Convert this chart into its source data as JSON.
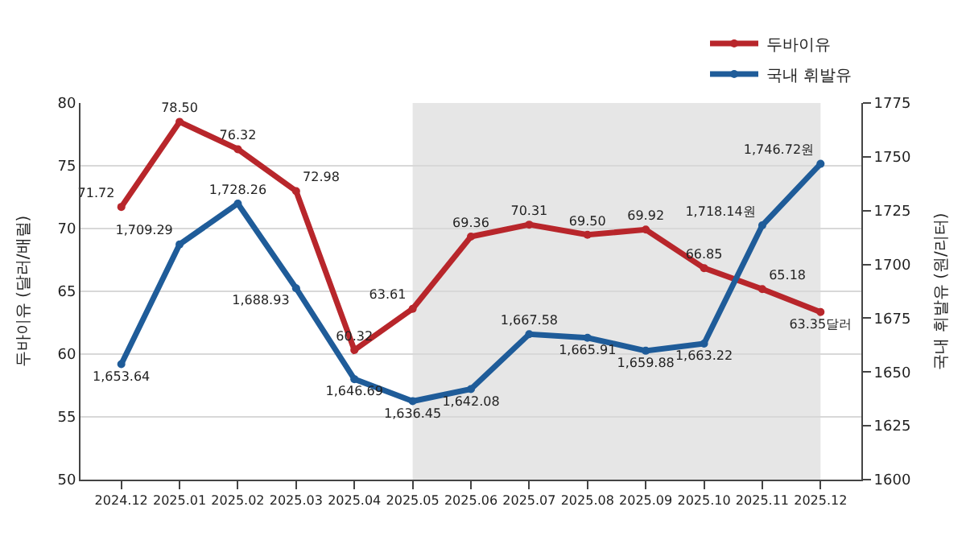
{
  "chart_data": {
    "type": "line",
    "categories": [
      "2024.12",
      "2025.01",
      "2025.02",
      "2025.03",
      "2025.04",
      "2025.05",
      "2025.06",
      "2025.07",
      "2025.08",
      "2025.09",
      "2025.10",
      "2025.11",
      "2025.12"
    ],
    "series": [
      {
        "name": "두바이유",
        "color": "#b8262b",
        "values": [
          71.72,
          78.5,
          76.32,
          72.98,
          60.32,
          63.61,
          69.36,
          70.31,
          69.5,
          69.92,
          66.85,
          65.18,
          63.35
        ],
        "value_labels": [
          "71.72",
          "78.50",
          "76.32",
          "72.98",
          "60.32",
          "63.61",
          "69.36",
          "70.31",
          "69.50",
          "69.92",
          "66.85",
          "65.18",
          "63.35달러"
        ]
      },
      {
        "name": "국내 휘발유",
        "color": "#1f5c99",
        "axis": "y2",
        "values": [
          1653.64,
          1709.29,
          1728.26,
          1688.93,
          1646.69,
          1636.45,
          1642.08,
          1667.58,
          1665.91,
          1659.88,
          1663.22,
          1718.14,
          1746.72
        ],
        "value_labels": [
          "1,653.64",
          "1,709.29",
          "1,728.26",
          "1,688.93",
          "1,646.69",
          "1,636.45",
          "1,642.08",
          "1,667.58",
          "1,665.91",
          "1,659.88",
          "1,663.22",
          "1,718.14원",
          "1,746.72원"
        ]
      }
    ],
    "ylabel": "두바이유 (달러/배럴)",
    "y2label": "국내 휘발유 (원/리터)",
    "ylim": [
      50,
      80
    ],
    "yticks": [
      50,
      55,
      60,
      65,
      70,
      75,
      80
    ],
    "y2lim": [
      1600,
      1775
    ],
    "y2ticks": [
      1600,
      1625,
      1650,
      1675,
      1700,
      1725,
      1750,
      1775
    ],
    "bands": [
      {
        "axis": "x",
        "from": "2025.05",
        "to": "2025.12",
        "color": "#e6e6e6"
      }
    ],
    "grid": "y",
    "legend": "top right",
    "marker": "circle",
    "line_style": "solid"
  }
}
